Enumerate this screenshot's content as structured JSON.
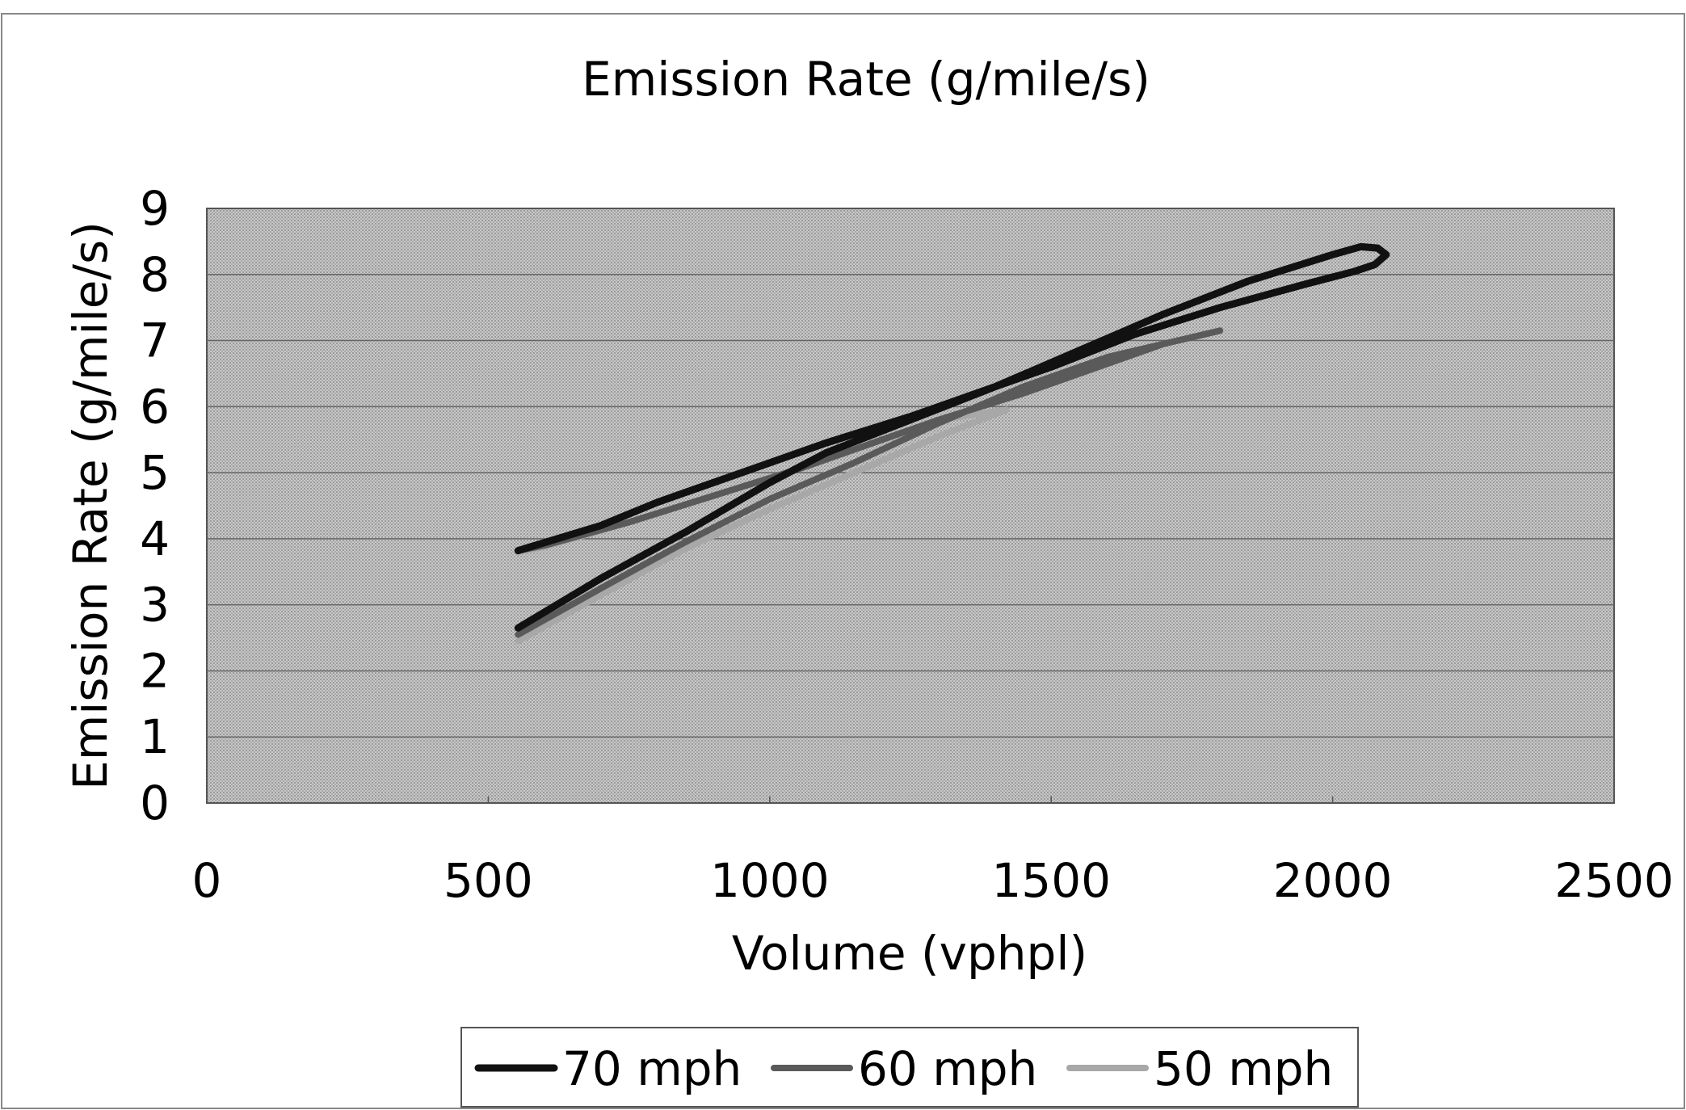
{
  "chart_data": {
    "type": "line",
    "title": "Emission Rate (g/mile/s)",
    "xlabel": "Volume (vphpl)",
    "ylabel": "Emission Rate (g/mile/s)",
    "xlim": [
      0,
      2500
    ],
    "ylim": [
      0,
      9
    ],
    "x_ticks": [
      "0",
      "500",
      "1000",
      "1500",
      "2000",
      "2500"
    ],
    "y_ticks": [
      "0",
      "1",
      "2",
      "3",
      "4",
      "5",
      "6",
      "7",
      "8",
      "9"
    ],
    "grid": "horizontal",
    "legend_position": "bottom",
    "series": [
      {
        "name": "70 mph",
        "color": "#111111",
        "points": [
          [
            553,
            2.65
          ],
          [
            700,
            3.4
          ],
          [
            850,
            4.1
          ],
          [
            1000,
            4.85
          ],
          [
            1100,
            5.3
          ],
          [
            1250,
            5.8
          ],
          [
            1400,
            6.3
          ],
          [
            1550,
            6.85
          ],
          [
            1700,
            7.4
          ],
          [
            1850,
            7.9
          ],
          [
            2000,
            8.3
          ],
          [
            2050,
            8.42
          ],
          [
            2080,
            8.4
          ],
          [
            2095,
            8.3
          ],
          [
            2075,
            8.15
          ],
          [
            2040,
            8.05
          ],
          [
            1950,
            7.85
          ],
          [
            1800,
            7.5
          ],
          [
            1650,
            7.1
          ],
          [
            1500,
            6.6
          ],
          [
            1400,
            6.3
          ],
          [
            1250,
            5.85
          ],
          [
            1100,
            5.45
          ],
          [
            950,
            5.0
          ],
          [
            800,
            4.55
          ],
          [
            700,
            4.2
          ],
          [
            553,
            3.82
          ]
        ]
      },
      {
        "name": "60 mph",
        "color": "#5a5a5a",
        "points": [
          [
            553,
            2.55
          ],
          [
            700,
            3.25
          ],
          [
            850,
            3.95
          ],
          [
            1000,
            4.6
          ],
          [
            1150,
            5.15
          ],
          [
            1300,
            5.75
          ],
          [
            1450,
            6.3
          ],
          [
            1600,
            6.75
          ],
          [
            1700,
            6.95
          ],
          [
            1800,
            7.15
          ],
          [
            1700,
            6.95
          ],
          [
            1600,
            6.65
          ],
          [
            1450,
            6.2
          ],
          [
            1300,
            5.8
          ],
          [
            1200,
            5.5
          ],
          [
            1050,
            5.05
          ],
          [
            900,
            4.65
          ],
          [
            750,
            4.25
          ],
          [
            600,
            3.9
          ],
          [
            553,
            3.82
          ]
        ]
      },
      {
        "name": "50 mph",
        "color": "#a8a8a8",
        "points": [
          [
            553,
            2.45
          ],
          [
            700,
            3.15
          ],
          [
            850,
            3.85
          ],
          [
            1000,
            4.45
          ],
          [
            1150,
            5.0
          ],
          [
            1300,
            5.55
          ],
          [
            1420,
            5.95
          ],
          [
            1300,
            5.8
          ],
          [
            1200,
            5.5
          ],
          [
            1050,
            5.05
          ],
          [
            900,
            4.65
          ],
          [
            750,
            4.25
          ],
          [
            600,
            3.88
          ],
          [
            553,
            3.8
          ]
        ]
      }
    ]
  }
}
